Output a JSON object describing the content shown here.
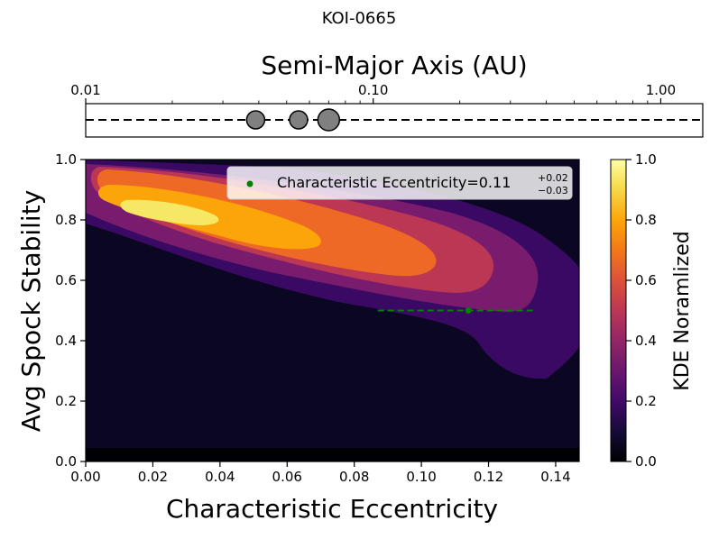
{
  "figure_title": "KOI-0665",
  "chart_data": [
    {
      "type": "scatter",
      "title": "",
      "xlabel": "Semi-Major Axis (AU)",
      "x_scale": "log",
      "xlim": [
        0.01,
        1.4
      ],
      "x_tick_labels": [
        "0.01",
        "0.10",
        "1.00"
      ],
      "x_ticks": [
        0.01,
        0.1,
        1.0
      ],
      "axis_position": "top",
      "dashed_line": true,
      "points": [
        {
          "a": 0.039,
          "size": 1.0
        },
        {
          "a": 0.055,
          "size": 1.0
        },
        {
          "a": 0.07,
          "size": 1.2
        }
      ],
      "marker_color": "#808080"
    },
    {
      "type": "heatmap",
      "subtype": "filled-contour KDE",
      "xlabel": "Characteristic Eccentricity",
      "ylabel": "Avg Spock Stability",
      "xlim": [
        0.0,
        0.147
      ],
      "ylim": [
        0.0,
        1.0
      ],
      "x_ticks": [
        0.0,
        0.02,
        0.04,
        0.06,
        0.08,
        0.1,
        0.12,
        0.14
      ],
      "x_tick_labels": [
        "0.00",
        "0.02",
        "0.04",
        "0.06",
        "0.08",
        "0.10",
        "0.12",
        "0.14"
      ],
      "y_ticks": [
        0.0,
        0.2,
        0.4,
        0.6,
        0.8,
        1.0
      ],
      "y_tick_labels": [
        "0.0",
        "0.2",
        "0.4",
        "0.6",
        "0.8",
        "1.0"
      ],
      "colormap": "inferno",
      "colorbar": {
        "label": "KDE Noramlized",
        "range": [
          0.0,
          1.0
        ],
        "ticks": [
          0.0,
          0.2,
          0.4,
          0.6,
          0.8,
          1.0
        ],
        "tick_labels": [
          "0.0",
          "0.2",
          "0.4",
          "0.6",
          "0.8",
          "1.0"
        ]
      },
      "contour_levels": [
        0.0,
        0.14,
        0.28,
        0.43,
        0.57,
        0.71,
        0.86,
        1.0
      ],
      "contour_colors": [
        "#0b0723",
        "#3a0963",
        "#7a1c6d",
        "#bb3754",
        "#ed6925",
        "#fca50a",
        "#f6e864"
      ],
      "marker": {
        "x": 0.114,
        "y": 0.5,
        "err_minus": 0.027,
        "err_plus": 0.02,
        "color": "#008000"
      },
      "legend": {
        "placement": "top-right",
        "label_prefix": "Characteristic Eccentricity=0.11",
        "sup": "+0.02",
        "sub": "−0.03"
      }
    }
  ]
}
